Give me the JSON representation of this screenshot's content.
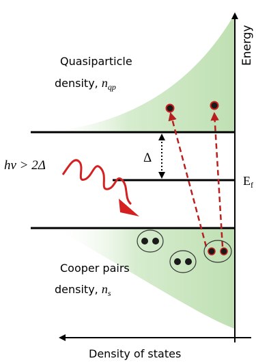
{
  "labels": {
    "energy": "Energy",
    "fermi_level": "E",
    "fermi_subscript": "f",
    "quasiparticle_line1": "Quasiparticle",
    "quasiparticle_line2": "density, ",
    "quasiparticle_symbol": "n",
    "quasiparticle_subscript": "qp",
    "cooper_line1": "Cooper pairs",
    "cooper_line2": "density, ",
    "cooper_symbol": "n",
    "cooper_subscript": "s",
    "photon_condition": "hν > 2Δ",
    "gap": "Δ",
    "x_axis": "Density of states"
  },
  "colors": {
    "dos_fill": "#cfe8c5",
    "photon": "#d42020",
    "transition_arrow": "#b82020",
    "particle_fill": "#1a1a1a",
    "particle_ring": "#c81e1e",
    "axis": "#000000"
  }
}
